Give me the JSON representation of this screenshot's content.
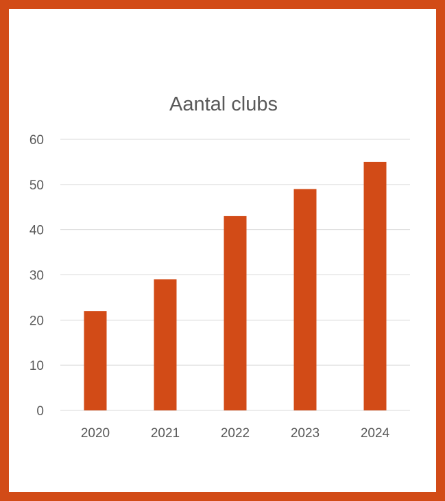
{
  "chart_data": {
    "type": "bar",
    "title": "Aantal clubs",
    "categories": [
      "2020",
      "2021",
      "2022",
      "2023",
      "2024"
    ],
    "values": [
      22,
      29,
      43,
      49,
      55
    ],
    "ylim": [
      0,
      60
    ],
    "yticks": [
      0,
      10,
      20,
      30,
      40,
      50,
      60
    ],
    "xlabel": "",
    "ylabel": "",
    "grid": true,
    "legend": false,
    "bar_color": "#d24b17",
    "frame_color": "#d24b17"
  }
}
